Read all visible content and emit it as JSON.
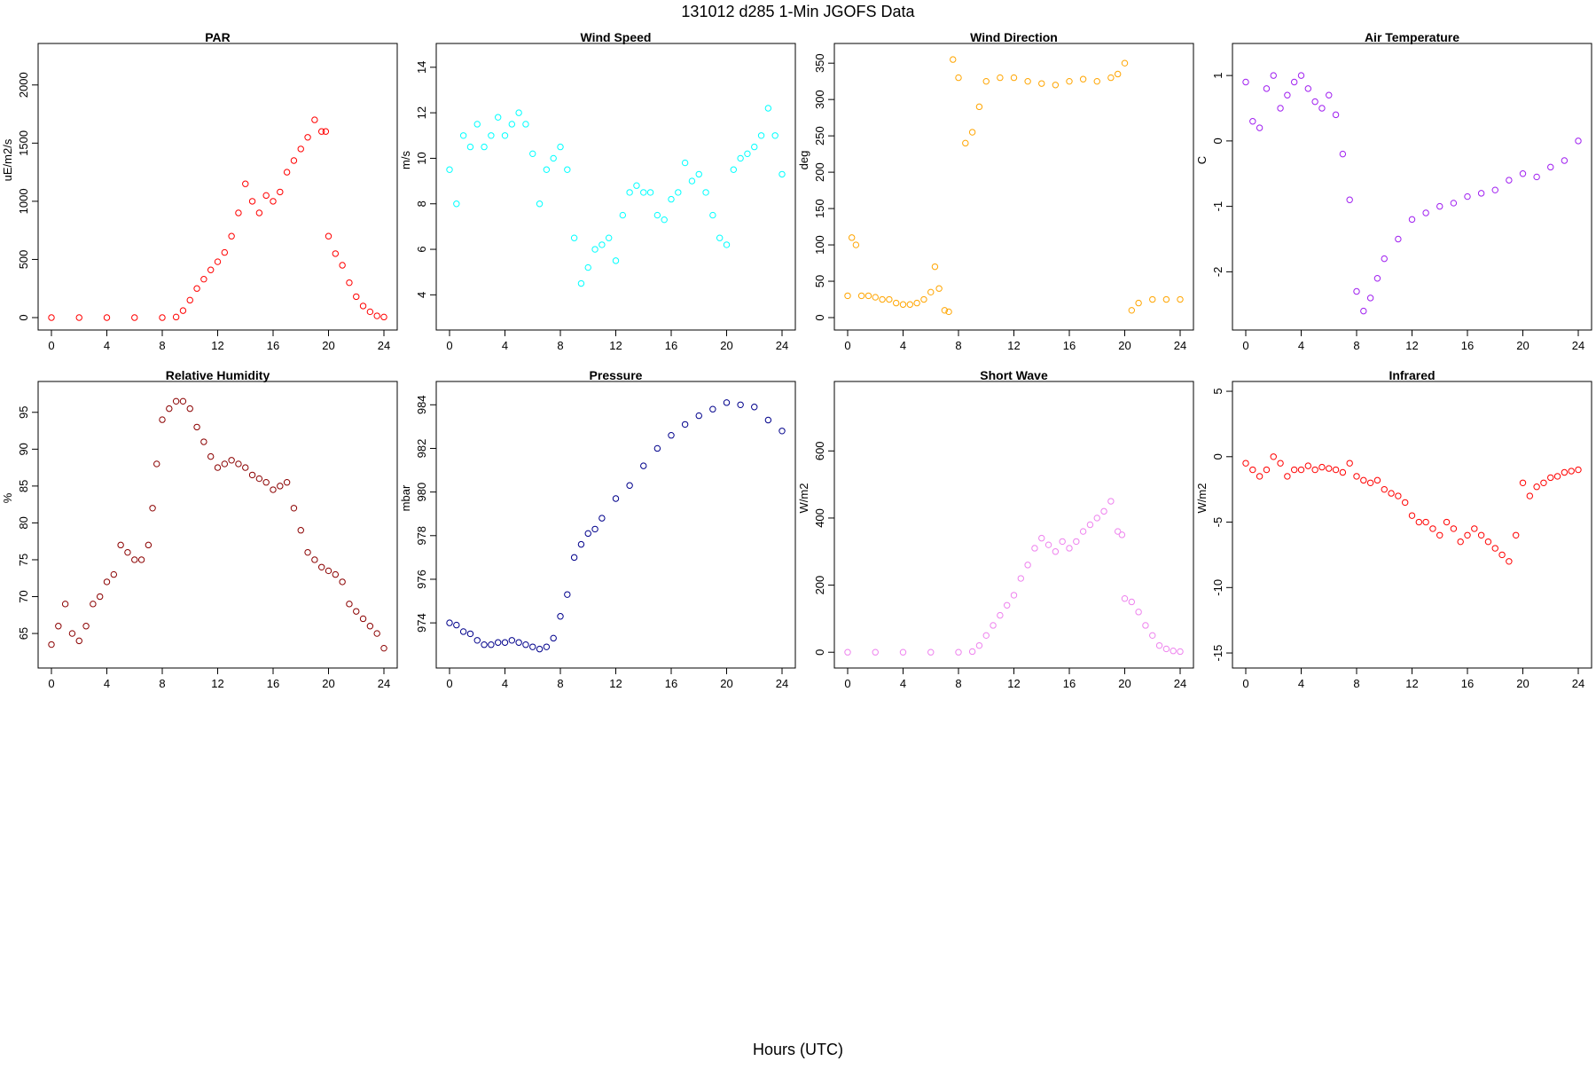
{
  "figure": {
    "title": "131012   d285   1-Min  JGOFS Data",
    "xlabel": "Hours (UTC)"
  },
  "chart_data": [
    {
      "type": "scatter",
      "title": "PAR",
      "xlabel": "",
      "ylabel": "uE/m2/s",
      "color": "#ff0000",
      "xlim": [
        0,
        24
      ],
      "ylim": [
        0,
        2250
      ],
      "xticks": [
        "0",
        "4",
        "8",
        "12",
        "16",
        "20",
        "24"
      ],
      "yticks": [
        "0",
        "500",
        "1000",
        "1500",
        "2000"
      ],
      "series": [
        {
          "x": [
            0,
            2,
            4,
            6,
            8,
            9,
            9.5,
            10,
            10.5,
            11,
            11.5,
            12,
            12.5,
            13,
            13.5,
            14,
            14.5,
            15,
            15.5,
            16,
            16.5,
            17,
            17.5,
            18,
            18.5,
            19,
            19.5,
            19.8,
            20,
            20.5,
            21,
            21.5,
            22,
            22.5,
            23,
            23.5,
            24
          ],
          "values": [
            0,
            0,
            0,
            0,
            0,
            5,
            60,
            150,
            250,
            330,
            410,
            480,
            560,
            700,
            900,
            1150,
            1000,
            900,
            1050,
            1000,
            1080,
            1250,
            1350,
            1450,
            1550,
            1700,
            1600,
            1600,
            700,
            550,
            450,
            300,
            180,
            100,
            50,
            15,
            5
          ]
        }
      ]
    },
    {
      "type": "scatter",
      "title": "Wind Speed",
      "xlabel": "",
      "ylabel": "m/s",
      "color": "#00ffff",
      "xlim": [
        0,
        24
      ],
      "ylim": [
        3,
        14.5
      ],
      "xticks": [
        "0",
        "4",
        "8",
        "12",
        "16",
        "20",
        "24"
      ],
      "yticks": [
        "4",
        "6",
        "8",
        "10",
        "12",
        "14"
      ],
      "series": [
        {
          "x": [
            0,
            0.5,
            1,
            1.5,
            2,
            2.5,
            3,
            3.5,
            4,
            4.5,
            5,
            5.5,
            6,
            6.5,
            7,
            7.5,
            8,
            8.5,
            9,
            9.5,
            10,
            10.5,
            11,
            11.5,
            12,
            12.5,
            13,
            13.5,
            14,
            14.5,
            15,
            15.5,
            16,
            16.5,
            17,
            17.5,
            18,
            18.5,
            19,
            19.5,
            20,
            20.5,
            21,
            21.5,
            22,
            22.5,
            23,
            23.5,
            24
          ],
          "values": [
            9.5,
            8,
            11,
            10.5,
            11.5,
            10.5,
            11,
            11.8,
            11,
            11.5,
            12,
            11.5,
            10.2,
            8,
            9.5,
            10,
            10.5,
            9.5,
            6.5,
            4.5,
            5.2,
            6,
            6.2,
            6.5,
            5.5,
            7.5,
            8.5,
            8.8,
            8.5,
            8.5,
            7.5,
            7.3,
            8.2,
            8.5,
            9.8,
            9,
            9.3,
            8.5,
            7.5,
            6.5,
            6.2,
            9.5,
            10,
            10.2,
            10.5,
            11,
            12.2,
            11,
            9.3
          ]
        }
      ]
    },
    {
      "type": "scatter",
      "title": "Wind Direction",
      "xlabel": "",
      "ylabel": "deg",
      "color": "#ffa500",
      "xlim": [
        0,
        24
      ],
      "ylim": [
        0,
        360
      ],
      "xticks": [
        "0",
        "4",
        "8",
        "12",
        "16",
        "20",
        "24"
      ],
      "yticks": [
        "0",
        "50",
        "100",
        "150",
        "200",
        "250",
        "300",
        "350"
      ],
      "series": [
        {
          "x": [
            0,
            0.3,
            0.6,
            1,
            1.5,
            2,
            2.5,
            3,
            3.5,
            4,
            4.5,
            5,
            5.5,
            6,
            6.3,
            6.6,
            7,
            7.3,
            7.6,
            8,
            8.5,
            9,
            9.5,
            10,
            11,
            12,
            13,
            14,
            15,
            16,
            17,
            18,
            19,
            19.5,
            20,
            20.5,
            21,
            22,
            23,
            24
          ],
          "values": [
            30,
            110,
            100,
            30,
            30,
            28,
            25,
            25,
            20,
            18,
            18,
            20,
            25,
            35,
            70,
            40,
            10,
            8,
            355,
            330,
            240,
            255,
            290,
            325,
            330,
            330,
            325,
            322,
            320,
            325,
            328,
            325,
            330,
            335,
            350,
            10,
            20,
            25,
            25,
            25
          ]
        }
      ]
    },
    {
      "type": "scatter",
      "title": "Air Temperature",
      "xlabel": "",
      "ylabel": "C",
      "color": "#a020f0",
      "xlim": [
        0,
        24
      ],
      "ylim": [
        -2.7,
        1.3
      ],
      "xticks": [
        "0",
        "4",
        "8",
        "12",
        "16",
        "20",
        "24"
      ],
      "yticks": [
        "-2",
        "-1",
        "0",
        "1"
      ],
      "series": [
        {
          "x": [
            0,
            0.5,
            1,
            1.5,
            2,
            2.5,
            3,
            3.5,
            4,
            4.5,
            5,
            5.5,
            6,
            6.5,
            7,
            7.5,
            8,
            8.5,
            9,
            9.5,
            10,
            11,
            12,
            13,
            14,
            15,
            16,
            17,
            18,
            19,
            20,
            21,
            22,
            23,
            24
          ],
          "values": [
            0.9,
            0.3,
            0.2,
            0.8,
            1.0,
            0.5,
            0.7,
            0.9,
            1.0,
            0.8,
            0.6,
            0.5,
            0.7,
            0.4,
            -0.2,
            -0.9,
            -2.3,
            -2.6,
            -2.4,
            -2.1,
            -1.8,
            -1.5,
            -1.2,
            -1.1,
            -1.0,
            -0.95,
            -0.85,
            -0.8,
            -0.75,
            -0.6,
            -0.5,
            -0.55,
            -0.4,
            -0.3,
            0.0
          ]
        }
      ]
    },
    {
      "type": "scatter",
      "title": "Relative Humidity",
      "xlabel": "",
      "ylabel": "%",
      "color": "#8b0000",
      "xlim": [
        0,
        24
      ],
      "ylim": [
        62,
        97.5
      ],
      "xticks": [
        "0",
        "4",
        "8",
        "12",
        "16",
        "20",
        "24"
      ],
      "yticks": [
        "65",
        "70",
        "75",
        "80",
        "85",
        "90",
        "95"
      ],
      "series": [
        {
          "x": [
            0,
            0.5,
            1,
            1.5,
            2,
            2.5,
            3,
            3.5,
            4,
            4.5,
            5,
            5.5,
            6,
            6.5,
            7,
            7.3,
            7.6,
            8,
            8.5,
            9,
            9.5,
            10,
            10.5,
            11,
            11.5,
            12,
            12.5,
            13,
            13.5,
            14,
            14.5,
            15,
            15.5,
            16,
            16.5,
            17,
            17.5,
            18,
            18.5,
            19,
            19.5,
            20,
            20.5,
            21,
            21.5,
            22,
            22.5,
            23,
            23.5,
            24
          ],
          "values": [
            63.5,
            66,
            69,
            65,
            64,
            66,
            69,
            70,
            72,
            73,
            77,
            76,
            75,
            75,
            77,
            82,
            88,
            94,
            95.5,
            96.5,
            96.5,
            95.5,
            93,
            91,
            89,
            87.5,
            88,
            88.5,
            88,
            87.5,
            86.5,
            86,
            85.5,
            84.5,
            85,
            85.5,
            82,
            79,
            76,
            75,
            74,
            73.5,
            73,
            72,
            69,
            68,
            67,
            66,
            65,
            63
          ]
        }
      ]
    },
    {
      "type": "scatter",
      "title": "Pressure",
      "xlabel": "",
      "ylabel": "mbar",
      "color": "#00008b",
      "xlim": [
        0,
        24
      ],
      "ylim": [
        972.5,
        984.5
      ],
      "xticks": [
        "0",
        "4",
        "8",
        "12",
        "16",
        "20",
        "24"
      ],
      "yticks": [
        "974",
        "976",
        "978",
        "980",
        "982",
        "984"
      ],
      "series": [
        {
          "x": [
            0,
            0.5,
            1,
            1.5,
            2,
            2.5,
            3,
            3.5,
            4,
            4.5,
            5,
            5.5,
            6,
            6.5,
            7,
            7.5,
            8,
            8.5,
            9,
            9.5,
            10,
            10.5,
            11,
            12,
            13,
            14,
            15,
            16,
            17,
            18,
            19,
            20,
            21,
            22,
            23,
            24
          ],
          "values": [
            974,
            973.9,
            973.6,
            973.5,
            973.2,
            973,
            973,
            973.1,
            973.1,
            973.2,
            973.1,
            973,
            972.9,
            972.8,
            972.9,
            973.3,
            974.3,
            975.3,
            977,
            977.6,
            978.1,
            978.3,
            978.8,
            979.7,
            980.3,
            981.2,
            982,
            982.6,
            983.1,
            983.5,
            983.8,
            984.1,
            984,
            983.9,
            983.3,
            982.8
          ]
        }
      ]
    },
    {
      "type": "scatter",
      "title": "Short Wave",
      "xlabel": "",
      "ylabel": "W/m2",
      "color": "#ee82ee",
      "xlim": [
        0,
        24
      ],
      "ylim": [
        -10,
        770
      ],
      "xticks": [
        "0",
        "4",
        "8",
        "12",
        "16",
        "20",
        "24"
      ],
      "yticks": [
        "0",
        "200",
        "400",
        "600"
      ],
      "series": [
        {
          "x": [
            0,
            2,
            4,
            6,
            8,
            9,
            9.5,
            10,
            10.5,
            11,
            11.5,
            12,
            12.5,
            13,
            13.5,
            14,
            14.5,
            15,
            15.5,
            16,
            16.5,
            17,
            17.5,
            18,
            18.5,
            19,
            19.5,
            19.8,
            20,
            20.5,
            21,
            21.5,
            22,
            22.5,
            23,
            23.5,
            24
          ],
          "values": [
            0,
            0,
            0,
            0,
            0,
            2,
            20,
            50,
            80,
            110,
            140,
            170,
            220,
            260,
            310,
            340,
            320,
            300,
            330,
            310,
            330,
            360,
            380,
            400,
            420,
            450,
            360,
            350,
            160,
            150,
            120,
            80,
            50,
            20,
            10,
            4,
            2
          ]
        }
      ]
    },
    {
      "type": "scatter",
      "title": "Infrared",
      "xlabel": "",
      "ylabel": "W/m2",
      "color": "#ff0000",
      "xlim": [
        0,
        24
      ],
      "ylim": [
        -15.2,
        4.8
      ],
      "xticks": [
        "0",
        "4",
        "8",
        "12",
        "16",
        "20",
        "24"
      ],
      "yticks": [
        "-15",
        "-10",
        "-5",
        "0",
        "5"
      ],
      "series": [
        {
          "x": [
            0,
            0.5,
            1,
            1.5,
            2,
            2.5,
            3,
            3.5,
            4,
            4.5,
            5,
            5.5,
            6,
            6.5,
            7,
            7.5,
            8,
            8.5,
            9,
            9.5,
            10,
            10.5,
            11,
            11.5,
            12,
            12.5,
            13,
            13.5,
            14,
            14.5,
            15,
            15.5,
            16,
            16.5,
            17,
            17.5,
            18,
            18.5,
            19,
            19.5,
            20,
            20.5,
            21,
            21.5,
            22,
            22.5,
            23,
            23.5,
            24
          ],
          "values": [
            -0.5,
            -1,
            -1.5,
            -1,
            0,
            -0.5,
            -1.5,
            -1,
            -1,
            -0.7,
            -1,
            -0.8,
            -0.9,
            -1,
            -1.2,
            -0.5,
            -1.5,
            -1.8,
            -2,
            -1.8,
            -2.5,
            -2.8,
            -3,
            -3.5,
            -4.5,
            -5,
            -5,
            -5.5,
            -6,
            -5,
            -5.5,
            -6.5,
            -6,
            -5.5,
            -6,
            -6.5,
            -7,
            -7.5,
            -8,
            -6,
            -2,
            -3,
            -2.3,
            -2,
            -1.6,
            -1.5,
            -1.2,
            -1.1,
            -1
          ]
        }
      ]
    }
  ]
}
